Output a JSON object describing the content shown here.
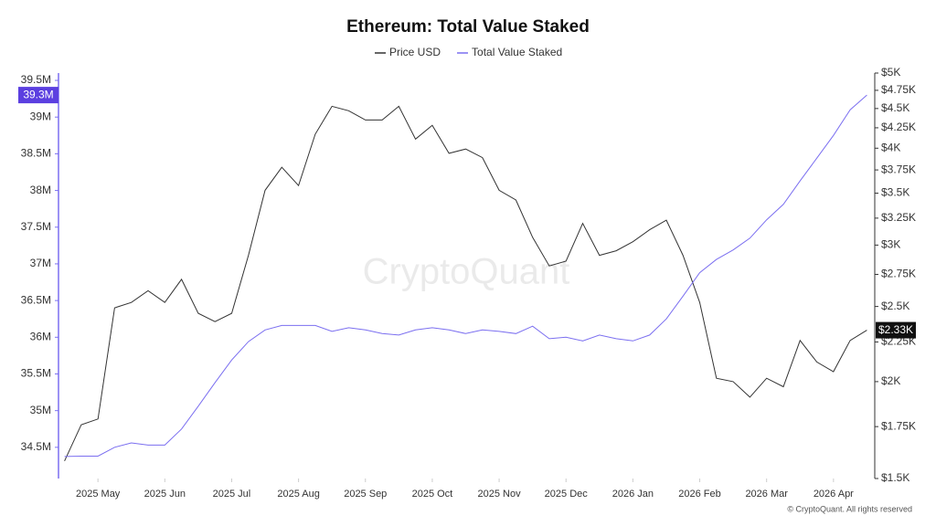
{
  "chart_data": {
    "type": "line",
    "title": "Ethereum: Total Value Staked",
    "watermark": "CryptoQuant",
    "footer": "© CryptoQuant. All rights reserved",
    "x": [
      4.5,
      4.75,
      5,
      5.25,
      5.5,
      5.75,
      6,
      6.25,
      6.5,
      6.75,
      7,
      7.25,
      7.5,
      7.75,
      8,
      8.25,
      8.5,
      8.75,
      9,
      9.25,
      9.5,
      9.75,
      10,
      10.25,
      10.5,
      10.75,
      11,
      11.25,
      11.5,
      11.75,
      12,
      12.25,
      12.5,
      12.75,
      13,
      13.25,
      13.5,
      13.75,
      14,
      14.25,
      14.5,
      14.75,
      15,
      15.25,
      15.5,
      15.75,
      16,
      16.25,
      16.5
    ],
    "xlim": [
      4.41,
      16.59
    ],
    "xticks": [
      {
        "value": 5,
        "label": "2025 May"
      },
      {
        "value": 6,
        "label": "2025 Jun"
      },
      {
        "value": 7,
        "label": "2025 Jul"
      },
      {
        "value": 8,
        "label": "2025 Aug"
      },
      {
        "value": 9,
        "label": "2025 Sep"
      },
      {
        "value": 10,
        "label": "2025 Oct"
      },
      {
        "value": 11,
        "label": "2025 Nov"
      },
      {
        "value": 12,
        "label": "2025 Dec"
      },
      {
        "value": 13,
        "label": "2026 Jan"
      },
      {
        "value": 14,
        "label": "2026 Feb"
      },
      {
        "value": 15,
        "label": "2026 Mar"
      },
      {
        "value": 16,
        "label": "2026 Apr"
      }
    ],
    "ylim": [
      34.075,
      39.6
    ],
    "yticks": [
      {
        "value": 34.5,
        "label": "34.5M"
      },
      {
        "value": 35,
        "label": "35M"
      },
      {
        "value": 35.5,
        "label": "35.5M"
      },
      {
        "value": 36,
        "label": "36M"
      },
      {
        "value": 36.5,
        "label": "36.5M"
      },
      {
        "value": 37,
        "label": "37M"
      },
      {
        "value": 37.5,
        "label": "37.5M"
      },
      {
        "value": 38,
        "label": "38M"
      },
      {
        "value": 38.5,
        "label": "38.5M"
      },
      {
        "value": 39,
        "label": "39M"
      },
      {
        "value": 39.5,
        "label": "39.5M"
      }
    ],
    "y2lim": [
      1.5,
      5
    ],
    "y2log": true,
    "y2ticks": [
      {
        "value": 1.5,
        "label": "$1.5K"
      },
      {
        "value": 1.75,
        "label": "$1.75K"
      },
      {
        "value": 2,
        "label": "$2K"
      },
      {
        "value": 2.25,
        "label": "$2.25K"
      },
      {
        "value": 2.5,
        "label": "$2.5K"
      },
      {
        "value": 2.75,
        "label": "$2.75K"
      },
      {
        "value": 3,
        "label": "$3K"
      },
      {
        "value": 3.25,
        "label": "$3.25K"
      },
      {
        "value": 3.5,
        "label": "$3.5K"
      },
      {
        "value": 3.75,
        "label": "$3.75K"
      },
      {
        "value": 4,
        "label": "$4K"
      },
      {
        "value": 4.25,
        "label": "$4.25K"
      },
      {
        "value": 4.5,
        "label": "$4.5K"
      },
      {
        "value": 4.75,
        "label": "$4.75K"
      },
      {
        "value": 5,
        "label": "$5K"
      }
    ],
    "series": [
      {
        "name": "Price USD",
        "color": "#333333",
        "axis": "y2",
        "last_value_label": "$2.33K",
        "values": [
          1.58,
          1.76,
          1.79,
          2.49,
          2.53,
          2.62,
          2.53,
          2.71,
          2.45,
          2.39,
          2.45,
          2.91,
          3.53,
          3.78,
          3.58,
          4.17,
          4.53,
          4.47,
          4.35,
          4.35,
          4.53,
          4.11,
          4.28,
          3.94,
          3.99,
          3.89,
          3.53,
          3.43,
          3.07,
          2.82,
          2.86,
          3.2,
          2.91,
          2.95,
          3.03,
          3.14,
          3.23,
          2.91,
          2.53,
          2.02,
          2.0,
          1.91,
          2.02,
          1.97,
          2.26,
          2.12,
          2.06,
          2.26,
          2.33
        ]
      },
      {
        "name": "Total Value Staked",
        "color": "#7b6ff0",
        "last_value_label": "39.3M",
        "values": [
          34.375,
          34.38,
          34.38,
          34.5,
          34.56,
          34.53,
          34.53,
          34.75,
          35.06,
          35.38,
          35.69,
          35.94,
          36.1,
          36.16,
          36.16,
          36.16,
          36.08,
          36.13,
          36.1,
          36.05,
          36.03,
          36.1,
          36.13,
          36.1,
          36.05,
          36.1,
          36.08,
          36.05,
          36.15,
          35.98,
          36.0,
          35.95,
          36.03,
          35.98,
          35.95,
          36.03,
          36.25,
          36.56,
          36.88,
          37.06,
          37.19,
          37.35,
          37.6,
          37.81,
          38.13,
          38.44,
          38.75,
          39.1,
          39.3
        ]
      }
    ]
  }
}
